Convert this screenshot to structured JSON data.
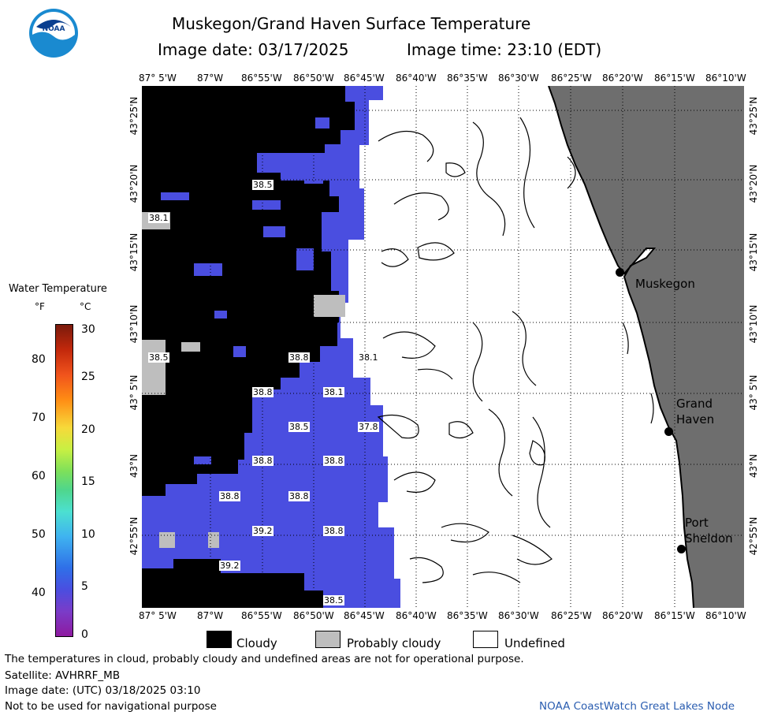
{
  "header": {
    "title": "Muskegon/Grand Haven Surface Temperature",
    "image_date": "Image date: 03/17/2025",
    "image_time": "Image time: 23:10 (EDT)"
  },
  "logo": {
    "text": "NOAA"
  },
  "map": {
    "lon_labels": [
      "87° 5'W",
      "87°W",
      "86°55'W",
      "86°50'W",
      "86°45'W",
      "86°40'W",
      "86°35'W",
      "86°30'W",
      "86°25'W",
      "86°20'W",
      "86°15'W",
      "86°10'W"
    ],
    "lat_labels": [
      "43°25'N",
      "43°20'N",
      "43°15'N",
      "43°10'N",
      "43° 5'N",
      "43°N",
      "42°55'N"
    ],
    "temperature_labels": [
      "38.5",
      "38.1",
      "38.5",
      "38.8",
      "38.1",
      "38.8",
      "38.1",
      "38.5",
      "37.8",
      "38.8",
      "38.8",
      "38.8",
      "38.8",
      "39.2",
      "38.8",
      "39.2",
      "38.5"
    ],
    "cities": [
      {
        "name": "Muskegon"
      },
      {
        "name": "Grand Haven",
        "line1": "Grand",
        "line2": "Haven"
      },
      {
        "name": "Port Sheldon",
        "line1": "Port",
        "line2": "Sheldon"
      }
    ],
    "colors": {
      "cloudy": "#000000",
      "probably_cloudy": "#bebebe",
      "water_38F": "#4a4ee0",
      "land": "#6e6e6e",
      "undefined": "#ffffff"
    }
  },
  "colorbar": {
    "title": "Water Temperature",
    "unit_f": "°F",
    "unit_c": "°C",
    "f_ticks": [
      "80",
      "70",
      "60",
      "50",
      "40"
    ],
    "c_ticks": [
      "30",
      "25",
      "20",
      "15",
      "10",
      "5",
      "0"
    ]
  },
  "legend": {
    "cloudy": "Cloudy",
    "probably_cloudy": "Probably cloudy",
    "undefined": "Undefined"
  },
  "footer": {
    "disclaimer": "The temperatures in cloud, probably cloudy and undefined areas are not for operational purpose.",
    "satellite": "Satellite: AVHRRF_MB",
    "utc_date": "Image date: (UTC) 03/18/2025  03:10",
    "navigation": "Not to be used for navigational purpose",
    "credit": "NOAA CoastWatch Great Lakes Node"
  }
}
